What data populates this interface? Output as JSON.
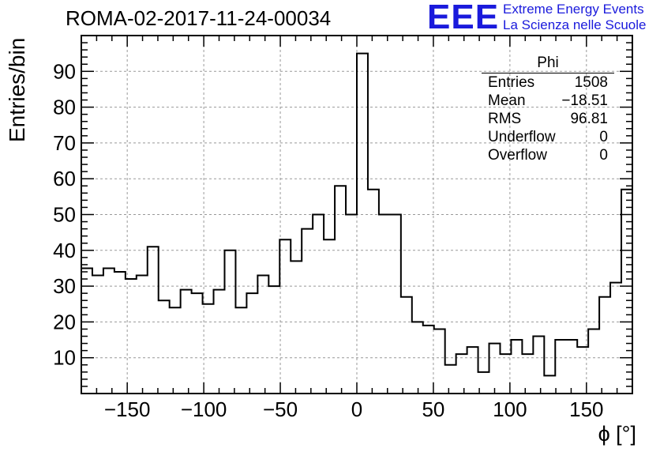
{
  "chart_data": {
    "type": "histogram",
    "title": "ROMA-02-2017-11-24-00034",
    "xlabel": "ϕ [°]",
    "ylabel": "Entries/bin",
    "xlim": [
      -180,
      180
    ],
    "ylim": [
      0,
      100
    ],
    "x_ticks": [
      -150,
      -100,
      -50,
      0,
      50,
      100,
      150
    ],
    "y_ticks": [
      10,
      20,
      30,
      40,
      50,
      60,
      70,
      80,
      90
    ],
    "grid": true,
    "bin_width": 7.2,
    "values": [
      35,
      33,
      35,
      34,
      32,
      33,
      41,
      26,
      24,
      29,
      28,
      25,
      29,
      40,
      24,
      28,
      33,
      30,
      43,
      37,
      46,
      50,
      43,
      58,
      50,
      95,
      57,
      50,
      50,
      27,
      20,
      19,
      18,
      8,
      11,
      13,
      6,
      14,
      11,
      15,
      11,
      16,
      5,
      15,
      15,
      13,
      18,
      27,
      31,
      57
    ],
    "stats_box": {
      "title": "Phi",
      "rows": [
        {
          "label": "Entries",
          "value": "1508"
        },
        {
          "label": "Mean",
          "value": "−18.51"
        },
        {
          "label": "RMS",
          "value": "96.81"
        },
        {
          "label": "Underflow",
          "value": "0"
        },
        {
          "label": "Overflow",
          "value": "0"
        }
      ]
    }
  },
  "branding": {
    "logo_text": "EEE",
    "line1": "Extreme Energy Events",
    "line2": "La Scienza nelle Scuole"
  }
}
